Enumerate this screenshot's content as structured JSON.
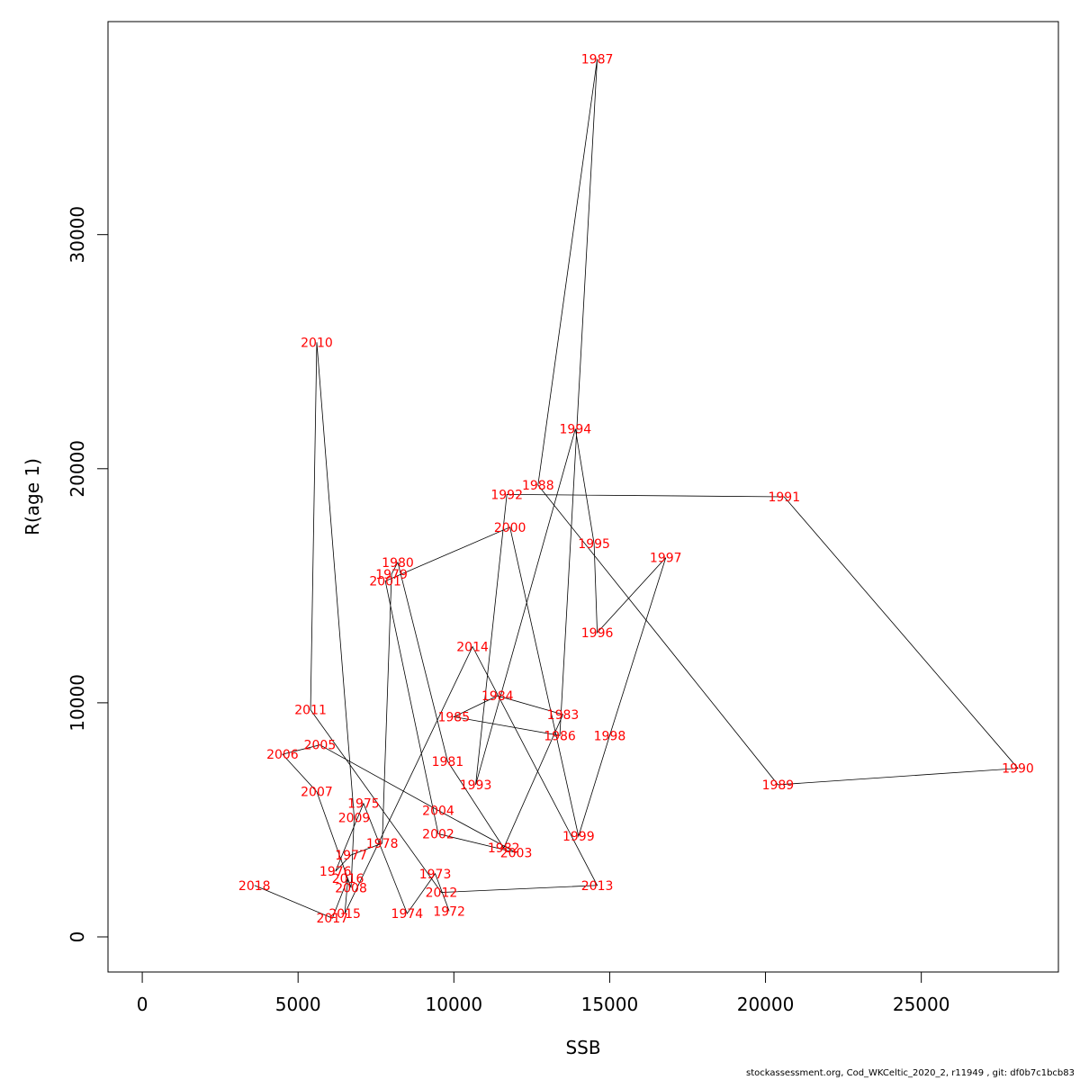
{
  "chart_data": {
    "type": "line",
    "xlabel": "SSB",
    "ylabel": "R(age 1)",
    "xlim": [
      -1100,
      29400
    ],
    "ylim": [
      -1500,
      39100
    ],
    "x_ticks": [
      0,
      5000,
      10000,
      15000,
      20000,
      25000
    ],
    "y_ticks": [
      0,
      10000,
      20000,
      30000
    ],
    "x_tick_labels": [
      "0",
      "5000",
      "10000",
      "15000",
      "20000",
      "25000"
    ],
    "y_tick_labels": [
      "0",
      "10000",
      "20000",
      "30000"
    ],
    "points": [
      {
        "year": "1972",
        "ssb": 9850,
        "r": 1100
      },
      {
        "year": "1973",
        "ssb": 9400,
        "r": 2700
      },
      {
        "year": "1974",
        "ssb": 8500,
        "r": 1000
      },
      {
        "year": "1975",
        "ssb": 7100,
        "r": 5700
      },
      {
        "year": "1976",
        "ssb": 6200,
        "r": 2800
      },
      {
        "year": "1977",
        "ssb": 6700,
        "r": 3500
      },
      {
        "year": "1978",
        "ssb": 7700,
        "r": 4000
      },
      {
        "year": "1979",
        "ssb": 8000,
        "r": 15500
      },
      {
        "year": "1980",
        "ssb": 8200,
        "r": 16000
      },
      {
        "year": "1981",
        "ssb": 9800,
        "r": 7500
      },
      {
        "year": "1982",
        "ssb": 11600,
        "r": 3800
      },
      {
        "year": "1983",
        "ssb": 13500,
        "r": 9500
      },
      {
        "year": "1984",
        "ssb": 11400,
        "r": 10300
      },
      {
        "year": "1985",
        "ssb": 10000,
        "r": 9400
      },
      {
        "year": "1986",
        "ssb": 13400,
        "r": 8600
      },
      {
        "year": "1987",
        "ssb": 14600,
        "r": 37500
      },
      {
        "year": "1988",
        "ssb": 12700,
        "r": 19300
      },
      {
        "year": "1989",
        "ssb": 20400,
        "r": 6500
      },
      {
        "year": "1990",
        "ssb": 28100,
        "r": 7200
      },
      {
        "year": "1991",
        "ssb": 20600,
        "r": 18800
      },
      {
        "year": "1992",
        "ssb": 11700,
        "r": 18900
      },
      {
        "year": "1993",
        "ssb": 10700,
        "r": 6500
      },
      {
        "year": "1994",
        "ssb": 13900,
        "r": 21700
      },
      {
        "year": "1995",
        "ssb": 14500,
        "r": 16800
      },
      {
        "year": "1996",
        "ssb": 14600,
        "r": 13000
      },
      {
        "year": "1997",
        "ssb": 16800,
        "r": 16200
      },
      {
        "year": "1998",
        "ssb": 15000,
        "r": 8600
      },
      {
        "year": "1999",
        "ssb": 14000,
        "r": 4300
      },
      {
        "year": "2000",
        "ssb": 11800,
        "r": 17500
      },
      {
        "year": "2001",
        "ssb": 7800,
        "r": 15200
      },
      {
        "year": "2002",
        "ssb": 9500,
        "r": 4400
      },
      {
        "year": "2003",
        "ssb": 12000,
        "r": 3600
      },
      {
        "year": "2004",
        "ssb": 9500,
        "r": 5400
      },
      {
        "year": "2005",
        "ssb": 5700,
        "r": 8200
      },
      {
        "year": "2006",
        "ssb": 4500,
        "r": 7800
      },
      {
        "year": "2007",
        "ssb": 5600,
        "r": 6200
      },
      {
        "year": "2008",
        "ssb": 6700,
        "r": 2100
      },
      {
        "year": "2009",
        "ssb": 6800,
        "r": 5100
      },
      {
        "year": "2010",
        "ssb": 5600,
        "r": 25400
      },
      {
        "year": "2011",
        "ssb": 5400,
        "r": 9700
      },
      {
        "year": "2012",
        "ssb": 9600,
        "r": 1900
      },
      {
        "year": "2013",
        "ssb": 14600,
        "r": 2200
      },
      {
        "year": "2014",
        "ssb": 10600,
        "r": 12400
      },
      {
        "year": "2015",
        "ssb": 6500,
        "r": 1000
      },
      {
        "year": "2016",
        "ssb": 6600,
        "r": 2500
      },
      {
        "year": "2017",
        "ssb": 6100,
        "r": 800
      },
      {
        "year": "2018",
        "ssb": 3600,
        "r": 2200
      }
    ]
  },
  "colors": {
    "point_label": "#ff0000",
    "line": "#000000"
  },
  "footer": "stockassessment.org, Cod_WKCeltic_2020_2, r11949 , git: df0b7c1bcb83"
}
